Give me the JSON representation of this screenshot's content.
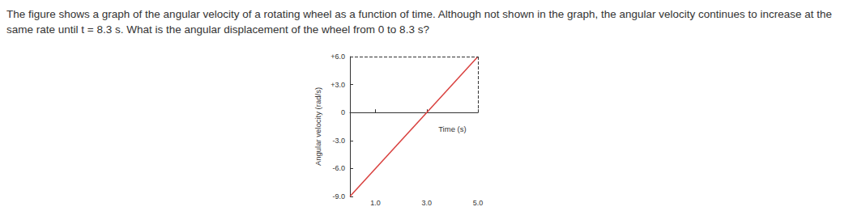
{
  "question": "The figure shows a graph of the angular velocity of a rotating wheel as a function of time. Although not shown in the graph, the angular velocity continues to increase at the same rate until t = 8.3 s. What is the angular displacement of the wheel from 0 to 8.3 s?",
  "chart_data": {
    "type": "line",
    "x_label": "Time (s)",
    "y_label": "Angular velocity (rad/s)",
    "x": [
      0,
      5
    ],
    "values": [
      -9,
      6
    ],
    "color": "#d9413f",
    "xlim": [
      0,
      5
    ],
    "xticks": [
      {
        "value": 1,
        "label": "1.0"
      },
      {
        "value": 3,
        "label": "3.0"
      },
      {
        "value": 5,
        "label": "5.0"
      }
    ],
    "ylim": [
      -9,
      6
    ],
    "yticks": [
      {
        "value": 6,
        "label": "+6.0"
      },
      {
        "value": 3,
        "label": "+3.0"
      },
      0,
      {
        "value": -3,
        "label": "-3.0"
      },
      {
        "value": -6,
        "label": "-6.0"
      },
      {
        "value": -9,
        "label": "-9.0"
      }
    ],
    "grid": false
  }
}
